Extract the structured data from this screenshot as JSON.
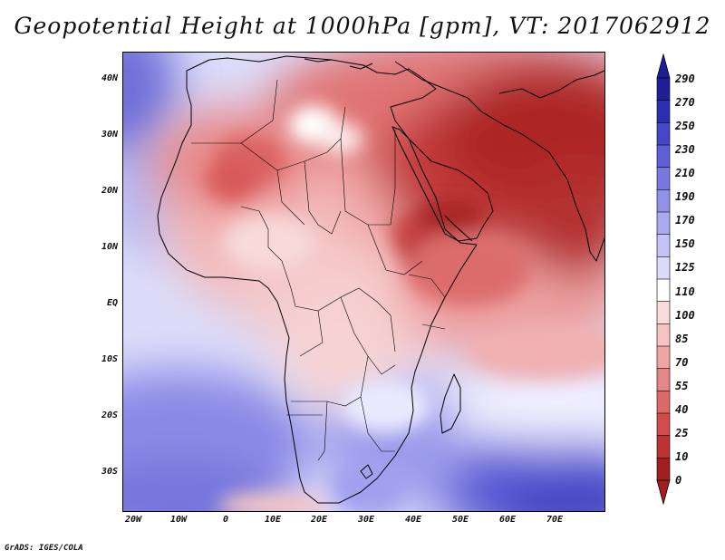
{
  "title": "Geopotential Height at 1000hPa [gpm], VT: 2017062912",
  "credit": "GrADS: IGES/COLA",
  "map": {
    "variable": "Geopotential Height",
    "level": "1000hPa",
    "units": "gpm",
    "valid_time": "2017062912",
    "region": "Africa and Middle East",
    "lon_range": [
      -23,
      80
    ],
    "lat_range": [
      -37,
      45
    ]
  },
  "axes": {
    "lat_ticks": [
      {
        "label": "40N",
        "value": 40
      },
      {
        "label": "30N",
        "value": 30
      },
      {
        "label": "20N",
        "value": 20
      },
      {
        "label": "10N",
        "value": 10
      },
      {
        "label": "EQ",
        "value": 0
      },
      {
        "label": "10S",
        "value": -10
      },
      {
        "label": "20S",
        "value": -20
      },
      {
        "label": "30S",
        "value": -30
      }
    ],
    "lon_ticks": [
      {
        "label": "20W",
        "value": -20
      },
      {
        "label": "10W",
        "value": -10
      },
      {
        "label": "0",
        "value": 0
      },
      {
        "label": "10E",
        "value": 10
      },
      {
        "label": "20E",
        "value": 20
      },
      {
        "label": "30E",
        "value": 30
      },
      {
        "label": "40E",
        "value": 40
      },
      {
        "label": "50E",
        "value": 50
      },
      {
        "label": "60E",
        "value": 60
      },
      {
        "label": "70E",
        "value": 70
      }
    ]
  },
  "colorbar": {
    "levels": [
      "290",
      "270",
      "250",
      "230",
      "210",
      "190",
      "170",
      "150",
      "125",
      "110",
      "100",
      "85",
      "70",
      "55",
      "40",
      "25",
      "10",
      "0"
    ],
    "colors": [
      "#1e1e96",
      "#2d2db4",
      "#4646c8",
      "#5f5fd7",
      "#7878e1",
      "#9191eb",
      "#aaaaf0",
      "#c3c3f5",
      "#dcdcfa",
      "#ffffff",
      "#fadcdc",
      "#f5c3c3",
      "#f0a5a5",
      "#e68787",
      "#dc6969",
      "#d24b4b",
      "#be3232",
      "#a01e1e"
    ]
  }
}
